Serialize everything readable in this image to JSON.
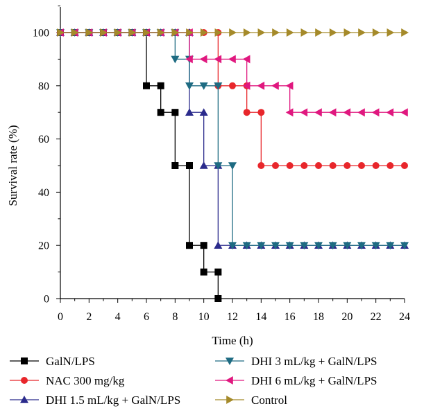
{
  "chart_data": {
    "type": "line",
    "step": true,
    "xlabel": "Time (h)",
    "ylabel": "Survival rate (%)",
    "xlim": [
      0,
      24
    ],
    "ylim": [
      0,
      100
    ],
    "xticks": [
      "0",
      "2",
      "4",
      "6",
      "8",
      "10",
      "12",
      "14",
      "16",
      "18",
      "20",
      "22",
      "24"
    ],
    "yticks": [
      "0",
      "20",
      "40",
      "60",
      "80",
      "100"
    ],
    "grid": false,
    "legend_position": "bottom",
    "series": [
      {
        "name": "GalN/LPS",
        "color": "#000000",
        "marker": "square",
        "points": [
          [
            0,
            100
          ],
          [
            1,
            100
          ],
          [
            2,
            100
          ],
          [
            3,
            100
          ],
          [
            4,
            100
          ],
          [
            5,
            100
          ],
          [
            6,
            100
          ],
          [
            6,
            80
          ],
          [
            7,
            80
          ],
          [
            7,
            70
          ],
          [
            8,
            70
          ],
          [
            8,
            50
          ],
          [
            9,
            50
          ],
          [
            9,
            20
          ],
          [
            10,
            20
          ],
          [
            10,
            10
          ],
          [
            11,
            10
          ],
          [
            11,
            0
          ]
        ]
      },
      {
        "name": "NAC 300 mg/kg",
        "color": "#e8262b",
        "marker": "circle",
        "points": [
          [
            0,
            100
          ],
          [
            1,
            100
          ],
          [
            2,
            100
          ],
          [
            3,
            100
          ],
          [
            4,
            100
          ],
          [
            5,
            100
          ],
          [
            6,
            100
          ],
          [
            7,
            100
          ],
          [
            8,
            100
          ],
          [
            9,
            100
          ],
          [
            10,
            100
          ],
          [
            11,
            100
          ],
          [
            11,
            80
          ],
          [
            12,
            80
          ],
          [
            13,
            80
          ],
          [
            13,
            70
          ],
          [
            14,
            70
          ],
          [
            14,
            50
          ],
          [
            15,
            50
          ],
          [
            16,
            50
          ],
          [
            17,
            50
          ],
          [
            18,
            50
          ],
          [
            19,
            50
          ],
          [
            20,
            50
          ],
          [
            21,
            50
          ],
          [
            22,
            50
          ],
          [
            23,
            50
          ],
          [
            24,
            50
          ]
        ]
      },
      {
        "name": "DHI 1.5 mL/kg + GalN/LPS",
        "color": "#2b2b8c",
        "marker": "triangle-up",
        "points": [
          [
            0,
            100
          ],
          [
            1,
            100
          ],
          [
            2,
            100
          ],
          [
            3,
            100
          ],
          [
            4,
            100
          ],
          [
            5,
            100
          ],
          [
            6,
            100
          ],
          [
            7,
            100
          ],
          [
            8,
            100
          ],
          [
            9,
            100
          ],
          [
            9,
            70
          ],
          [
            10,
            70
          ],
          [
            10,
            50
          ],
          [
            11,
            50
          ],
          [
            11,
            20
          ],
          [
            12,
            20
          ],
          [
            13,
            20
          ],
          [
            14,
            20
          ],
          [
            15,
            20
          ],
          [
            16,
            20
          ],
          [
            17,
            20
          ],
          [
            18,
            20
          ],
          [
            19,
            20
          ],
          [
            20,
            20
          ],
          [
            21,
            20
          ],
          [
            22,
            20
          ],
          [
            23,
            20
          ],
          [
            24,
            20
          ]
        ]
      },
      {
        "name": "DHI 3 mL/kg + GalN/LPS",
        "color": "#1e6b82",
        "marker": "triangle-down",
        "points": [
          [
            0,
            100
          ],
          [
            1,
            100
          ],
          [
            2,
            100
          ],
          [
            3,
            100
          ],
          [
            4,
            100
          ],
          [
            5,
            100
          ],
          [
            6,
            100
          ],
          [
            7,
            100
          ],
          [
            8,
            100
          ],
          [
            8,
            90
          ],
          [
            9,
            90
          ],
          [
            9,
            80
          ],
          [
            10,
            80
          ],
          [
            11,
            80
          ],
          [
            11,
            50
          ],
          [
            12,
            50
          ],
          [
            12,
            20
          ],
          [
            13,
            20
          ],
          [
            14,
            20
          ],
          [
            15,
            20
          ],
          [
            16,
            20
          ],
          [
            17,
            20
          ],
          [
            18,
            20
          ],
          [
            19,
            20
          ],
          [
            20,
            20
          ],
          [
            21,
            20
          ],
          [
            22,
            20
          ],
          [
            23,
            20
          ],
          [
            24,
            20
          ]
        ]
      },
      {
        "name": "DHI 6 mL/kg + GalN/LPS",
        "color": "#e0187f",
        "marker": "triangle-left",
        "points": [
          [
            0,
            100
          ],
          [
            1,
            100
          ],
          [
            2,
            100
          ],
          [
            3,
            100
          ],
          [
            4,
            100
          ],
          [
            5,
            100
          ],
          [
            6,
            100
          ],
          [
            7,
            100
          ],
          [
            8,
            100
          ],
          [
            9,
            100
          ],
          [
            9,
            90
          ],
          [
            10,
            90
          ],
          [
            11,
            90
          ],
          [
            12,
            90
          ],
          [
            13,
            90
          ],
          [
            13,
            80
          ],
          [
            14,
            80
          ],
          [
            15,
            80
          ],
          [
            16,
            80
          ],
          [
            16,
            70
          ],
          [
            17,
            70
          ],
          [
            18,
            70
          ],
          [
            19,
            70
          ],
          [
            20,
            70
          ],
          [
            21,
            70
          ],
          [
            22,
            70
          ],
          [
            23,
            70
          ],
          [
            24,
            70
          ]
        ]
      },
      {
        "name": "Control",
        "color": "#a58a2a",
        "marker": "triangle-right",
        "points": [
          [
            0,
            100
          ],
          [
            1,
            100
          ],
          [
            2,
            100
          ],
          [
            3,
            100
          ],
          [
            4,
            100
          ],
          [
            5,
            100
          ],
          [
            6,
            100
          ],
          [
            7,
            100
          ],
          [
            8,
            100
          ],
          [
            9,
            100
          ],
          [
            10,
            100
          ],
          [
            11,
            100
          ],
          [
            12,
            100
          ],
          [
            13,
            100
          ],
          [
            14,
            100
          ],
          [
            15,
            100
          ],
          [
            16,
            100
          ],
          [
            17,
            100
          ],
          [
            18,
            100
          ],
          [
            19,
            100
          ],
          [
            20,
            100
          ],
          [
            21,
            100
          ],
          [
            22,
            100
          ],
          [
            23,
            100
          ],
          [
            24,
            100
          ]
        ]
      }
    ]
  }
}
